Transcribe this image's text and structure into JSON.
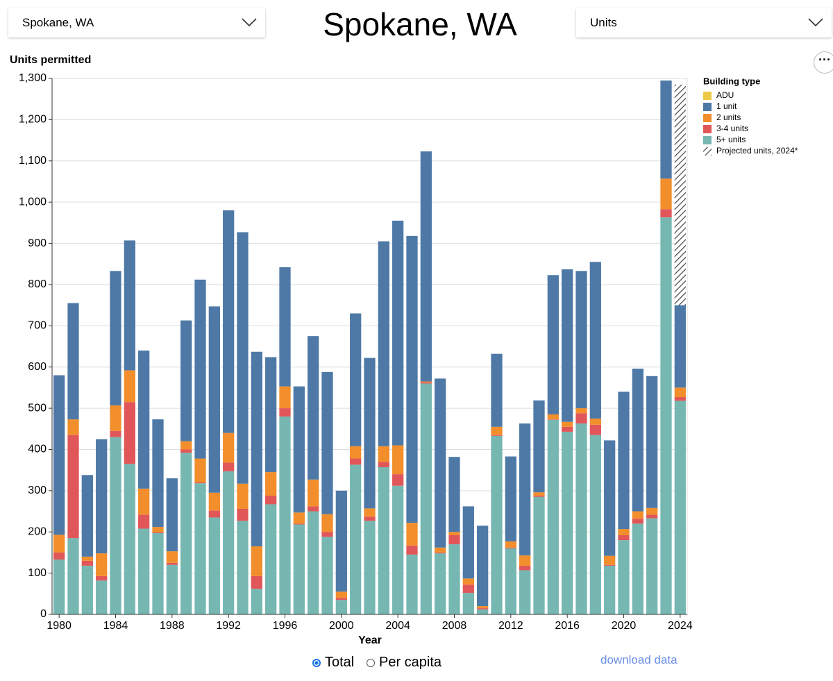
{
  "controls": {
    "location": "Spokane, WA",
    "measure": "Units",
    "modes": [
      "Total",
      "Per capita"
    ],
    "selected_mode": 0,
    "download": "download data"
  },
  "chart_data": {
    "type": "stacked-bar",
    "title": "Spokane, WA",
    "y_label": "Units permitted",
    "x_label": "Year",
    "legend_title": "Building type",
    "categories": [
      1980,
      1981,
      1982,
      1983,
      1984,
      1985,
      1986,
      1987,
      1988,
      1989,
      1990,
      1991,
      1992,
      1993,
      1994,
      1995,
      1996,
      1997,
      1998,
      1999,
      2000,
      2001,
      2002,
      2003,
      2004,
      2005,
      2006,
      2007,
      2008,
      2009,
      2010,
      2011,
      2012,
      2013,
      2014,
      2015,
      2016,
      2017,
      2018,
      2019,
      2020,
      2021,
      2022,
      2023,
      2024
    ],
    "xtick_every": 4,
    "stack_order": [
      4,
      3,
      2,
      0,
      1,
      5
    ],
    "series": [
      {
        "name": "ADU",
        "color": "#edc948",
        "values": [
          0,
          0,
          0,
          0,
          0,
          0,
          0,
          0,
          0,
          0,
          0,
          0,
          0,
          0,
          0,
          0,
          0,
          0,
          0,
          0,
          0,
          0,
          0,
          0,
          0,
          0,
          0,
          0,
          0,
          0,
          0,
          0,
          0,
          0,
          0,
          0,
          0,
          0,
          0,
          0,
          0,
          0,
          0,
          0,
          0
        ]
      },
      {
        "name": "1 unit",
        "color": "#4e79a7",
        "values": [
          387,
          282,
          198,
          277,
          326,
          315,
          335,
          261,
          177,
          293,
          434,
          452,
          540,
          610,
          472,
          279,
          289,
          306,
          348,
          345,
          245,
          322,
          365,
          497,
          545,
          696,
          558,
          410,
          182,
          175,
          195,
          177,
          206,
          320,
          223,
          338,
          370,
          333,
          380,
          280,
          333,
          346,
          320,
          238,
          200
        ]
      },
      {
        "name": "2 units",
        "color": "#f28e2b",
        "values": [
          43,
          38,
          10,
          55,
          62,
          77,
          63,
          13,
          28,
          20,
          58,
          43,
          72,
          61,
          72,
          57,
          53,
          27,
          65,
          43,
          15,
          30,
          20,
          38,
          70,
          55,
          2,
          12,
          8,
          15,
          5,
          20,
          15,
          25,
          8,
          12,
          12,
          12,
          15,
          22,
          15,
          18,
          16,
          74,
          23
        ]
      },
      {
        "name": "3-4 units",
        "color": "#e15759",
        "values": [
          17,
          250,
          12,
          11,
          15,
          150,
          34,
          2,
          5,
          8,
          2,
          17,
          21,
          29,
          31,
          21,
          20,
          2,
          12,
          12,
          5,
          15,
          10,
          13,
          28,
          22,
          3,
          2,
          22,
          20,
          3,
          2,
          2,
          11,
          3,
          1,
          12,
          25,
          25,
          2,
          12,
          12,
          9,
          20,
          9
        ]
      },
      {
        "name": "5+ units",
        "color": "#76b7b2",
        "values": [
          133,
          185,
          118,
          82,
          430,
          365,
          208,
          197,
          120,
          392,
          318,
          235,
          347,
          227,
          62,
          267,
          480,
          218,
          250,
          188,
          35,
          363,
          227,
          357,
          312,
          145,
          560,
          148,
          170,
          52,
          12,
          433,
          160,
          107,
          285,
          472,
          443,
          463,
          435,
          118,
          180,
          220,
          233,
          963,
          518
        ]
      },
      {
        "name": "Projected units, 2024*",
        "color": "#444444",
        "pattern": "hatch",
        "values": [
          null,
          null,
          null,
          null,
          null,
          null,
          null,
          null,
          null,
          null,
          null,
          null,
          null,
          null,
          null,
          null,
          null,
          null,
          null,
          null,
          null,
          null,
          null,
          null,
          null,
          null,
          null,
          null,
          null,
          null,
          null,
          null,
          null,
          null,
          null,
          null,
          null,
          null,
          null,
          null,
          null,
          null,
          null,
          null,
          535
        ]
      }
    ],
    "ylim": [
      0,
      1300
    ],
    "yticks": [
      0,
      100,
      200,
      300,
      400,
      500,
      600,
      700,
      800,
      900,
      {
        "value": 1000,
        "label": "1,000"
      },
      {
        "value": 1100,
        "label": "1,100"
      },
      {
        "value": 1200,
        "label": "1,200"
      },
      {
        "value": 1300,
        "label": "1,300"
      }
    ],
    "grid": true
  }
}
